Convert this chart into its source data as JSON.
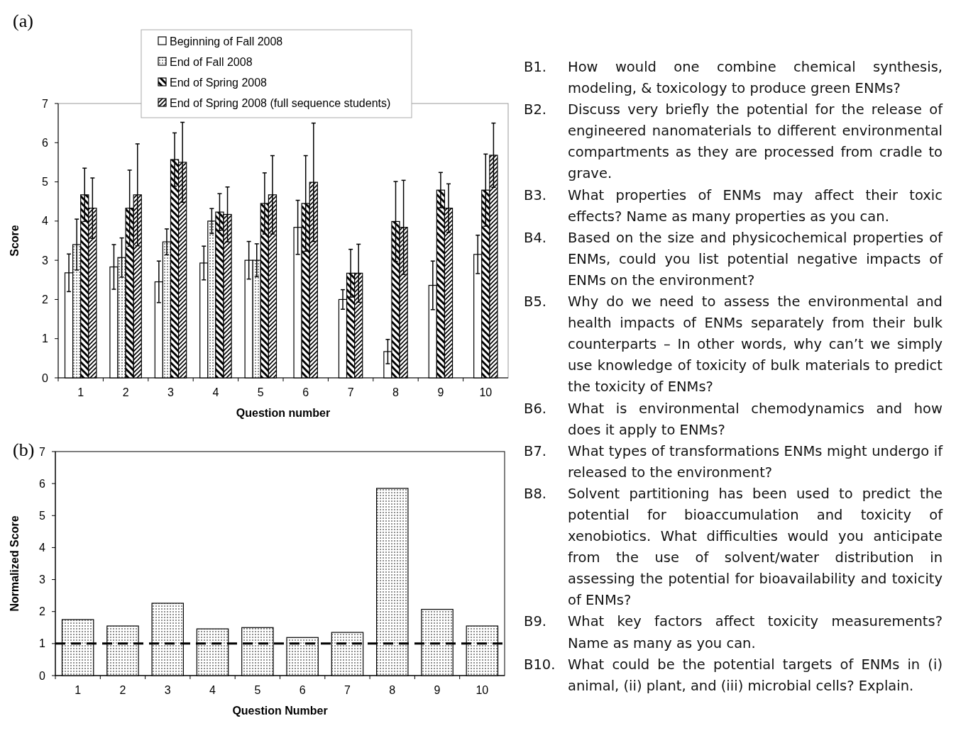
{
  "chart_data": [
    {
      "type": "bar",
      "annotations": [
        "(a)"
      ],
      "xlabel": "Question number",
      "ylabel": "Score",
      "categories": [
        "1",
        "2",
        "3",
        "4",
        "5",
        "6",
        "7",
        "8",
        "9",
        "10"
      ],
      "ylim": [
        0,
        7
      ],
      "yticks": [
        0,
        1,
        2,
        3,
        4,
        5,
        6,
        7
      ],
      "legend": "top",
      "series": [
        {
          "name": "Beginning of Fall 2008",
          "color": "#ffffff",
          "values": [
            2.68,
            2.83,
            2.45,
            2.93,
            3.0,
            3.84,
            2.0,
            0.67,
            2.36,
            3.15
          ],
          "errors": [
            0.48,
            0.57,
            0.53,
            0.43,
            0.48,
            0.69,
            0.25,
            0.31,
            0.62,
            0.49
          ]
        },
        {
          "name": "End of Fall 2008",
          "color": "#000000",
          "values": [
            3.4,
            3.07,
            3.47,
            4.0,
            3.0,
            null,
            null,
            null,
            null,
            null
          ],
          "errors": [
            0.65,
            0.5,
            0.33,
            0.32,
            0.42,
            null,
            null,
            null,
            null,
            null
          ]
        },
        {
          "name": "End of Spring 2008",
          "color": "#000000",
          "values": [
            4.67,
            4.33,
            5.57,
            4.23,
            4.45,
            4.45,
            2.67,
            3.99,
            4.79,
            4.79
          ],
          "errors": [
            0.68,
            0.97,
            0.68,
            0.47,
            0.78,
            1.22,
            0.61,
            1.02,
            0.45,
            0.92
          ]
        },
        {
          "name": "End of Spring 2008 (full sequence students)",
          "color": "#000000",
          "values": [
            4.33,
            4.67,
            5.5,
            4.17,
            4.67,
            4.99,
            2.67,
            3.84,
            4.33,
            5.68
          ],
          "errors": [
            0.77,
            1.3,
            1.02,
            0.7,
            1.0,
            1.51,
            0.74,
            1.2,
            0.62,
            0.82
          ]
        }
      ]
    },
    {
      "type": "bar",
      "annotations": [
        "(b)"
      ],
      "xlabel": "Question Number",
      "ylabel": "Normalized Score",
      "categories": [
        "1",
        "2",
        "3",
        "4",
        "5",
        "6",
        "7",
        "8",
        "9",
        "10"
      ],
      "ylim": [
        0,
        7
      ],
      "yticks": [
        0,
        1,
        2,
        3,
        4,
        5,
        6,
        7
      ],
      "color": "#000000",
      "values": [
        1.75,
        1.55,
        2.26,
        1.46,
        1.5,
        1.19,
        1.35,
        5.85,
        2.07,
        1.55
      ],
      "ref_lines": [
        {
          "axis": "y",
          "value": 1,
          "line_style": "dashed",
          "color": "#000000"
        }
      ]
    },
    {
      "type": "other",
      "annotations": [
        "B1. How would one combine chemical synthesis, modeling, & toxicology to produce green ENMs?",
        "B2. Discuss very briefly the potential for the release of engineered nanomaterials to different environmental compartments as they are processed from cradle to grave.",
        "B3. What properties of ENMs may affect their toxic effects? Name as many properties as you can.",
        "B4. Based on the size and physicochemical properties of ENMs, could you list potential negative impacts of ENMs on the environment?",
        "B5. Why do we need to assess the environmental and health impacts of ENMs separately from their bulk counterparts – In other words, why can’t we simply use knowledge of toxicity of bulk materials to predict the toxicity of ENMs?",
        "B6. What is environmental chemodynamics and how does it apply to ENMs?",
        "B7. What types of transformations ENMs might undergo if released to the environment?",
        "B8. Solvent partitioning has been used to predict the potential for bioaccumulation and toxicity of xenobiotics. What difficulties would you anticipate from the use of solvent/water distribution in assessing the potential for bioavailability and toxicity of ENMs?",
        "B9. What key factors affect toxicity measurements? Name as many as you can.",
        "B10. What could be the potential targets of ENMs in (i) animal, (ii) plant, and (iii) microbial cells? Explain."
      ]
    }
  ]
}
